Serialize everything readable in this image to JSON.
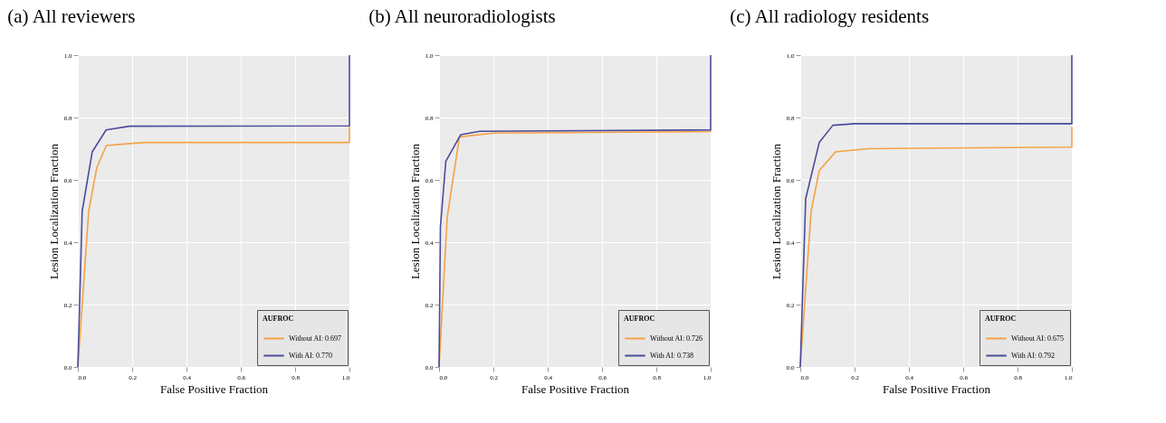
{
  "chart_data": [
    {
      "type": "line",
      "title": "(a) All reviewers",
      "xlabel": "False Positive Fraction",
      "ylabel": "Lesion Localization Fraction",
      "legend_title": "AUFROC",
      "legend": "bottom right",
      "grid": true,
      "xlim": [
        0,
        1
      ],
      "ylim": [
        0,
        1
      ],
      "xticks": [
        {
          "value": 0,
          "label": "0.0"
        },
        {
          "value": 0.2,
          "label": "0.2"
        },
        {
          "value": 0.4,
          "label": "0.4"
        },
        {
          "value": 0.6,
          "label": "0.6"
        },
        {
          "value": 0.8,
          "label": "0.8"
        },
        {
          "value": 1,
          "label": "1.0"
        }
      ],
      "yticks": [
        {
          "value": 0,
          "label": "0.0"
        },
        {
          "value": 0.2,
          "label": "0.2"
        },
        {
          "value": 0.4,
          "label": "0.4"
        },
        {
          "value": 0.6,
          "label": "0.6"
        },
        {
          "value": 0.8,
          "label": "0.8"
        },
        {
          "value": 1,
          "label": "1.0"
        }
      ],
      "series": [
        {
          "name": "Without AI: 0.697",
          "color": "#f4a245",
          "x": [
            0,
            0.04,
            0.07,
            0.105,
            0.2,
            0.25,
            1,
            1
          ],
          "values": [
            0,
            0.5,
            0.64,
            0.71,
            0.717,
            0.72,
            0.72,
            0.77
          ]
        },
        {
          "name": "With AI: 0.770",
          "color": "#4b4b9b",
          "x": [
            0,
            0.016,
            0.053,
            0.104,
            0.19,
            1,
            1
          ],
          "values": [
            0,
            0.5,
            0.69,
            0.76,
            0.772,
            0.773,
            1
          ]
        }
      ]
    },
    {
      "type": "line",
      "title": "(b) All neuroradiologists",
      "xlabel": "False Positive Fraction",
      "ylabel": "Lesion Localization Fraction",
      "legend_title": "AUFROC",
      "legend": "bottom right",
      "grid": true,
      "xlim": [
        0,
        1
      ],
      "ylim": [
        0,
        1
      ],
      "xticks": [
        {
          "value": 0,
          "label": "0.0"
        },
        {
          "value": 0.2,
          "label": "0.2"
        },
        {
          "value": 0.4,
          "label": "0.4"
        },
        {
          "value": 0.6,
          "label": "0.6"
        },
        {
          "value": 0.8,
          "label": "0.8"
        },
        {
          "value": 1,
          "label": "1.0"
        }
      ],
      "yticks": [
        {
          "value": 0,
          "label": "0.0"
        },
        {
          "value": 0.2,
          "label": "0.2"
        },
        {
          "value": 0.4,
          "label": "0.4"
        },
        {
          "value": 0.6,
          "label": "0.6"
        },
        {
          "value": 0.8,
          "label": "0.8"
        },
        {
          "value": 1,
          "label": "1.0"
        }
      ],
      "series": [
        {
          "name": "Without AI: 0.726",
          "color": "#f4a245",
          "x": [
            0,
            0.03,
            0.075,
            0.2,
            1,
            1
          ],
          "values": [
            0,
            0.48,
            0.738,
            0.75,
            0.755,
            0.76
          ]
        },
        {
          "name": "With AI: 0.738",
          "color": "#4b4b9b",
          "x": [
            0,
            0.005,
            0.025,
            0.08,
            0.15,
            1,
            1
          ],
          "values": [
            0,
            0.45,
            0.66,
            0.745,
            0.756,
            0.76,
            1
          ]
        }
      ]
    },
    {
      "type": "line",
      "title": "(c) All radiology residents",
      "xlabel": "False Positive Fraction",
      "ylabel": "Lesion Localization Fraction",
      "legend_title": "AUFROC",
      "legend": "bottom right",
      "grid": true,
      "xlim": [
        0,
        1
      ],
      "ylim": [
        0,
        1
      ],
      "xticks": [
        {
          "value": 0,
          "label": "0.0"
        },
        {
          "value": 0.2,
          "label": "0.2"
        },
        {
          "value": 0.4,
          "label": "0.4"
        },
        {
          "value": 0.6,
          "label": "0.6"
        },
        {
          "value": 0.8,
          "label": "0.8"
        },
        {
          "value": 1,
          "label": "1.0"
        }
      ],
      "yticks": [
        {
          "value": 0,
          "label": "0.0"
        },
        {
          "value": 0.2,
          "label": "0.2"
        },
        {
          "value": 0.4,
          "label": "0.4"
        },
        {
          "value": 0.6,
          "label": "0.6"
        },
        {
          "value": 0.8,
          "label": "0.8"
        },
        {
          "value": 1,
          "label": "1.0"
        }
      ],
      "series": [
        {
          "name": "Without AI: 0.675",
          "color": "#f4a245",
          "x": [
            0,
            0.04,
            0.07,
            0.13,
            0.25,
            1,
            1
          ],
          "values": [
            0,
            0.5,
            0.63,
            0.69,
            0.7,
            0.705,
            0.77
          ]
        },
        {
          "name": "With AI: 0.792",
          "color": "#4b4b9b",
          "x": [
            0,
            0.02,
            0.07,
            0.12,
            0.2,
            1,
            1
          ],
          "values": [
            0,
            0.54,
            0.72,
            0.775,
            0.78,
            0.78,
            1
          ]
        }
      ]
    }
  ]
}
